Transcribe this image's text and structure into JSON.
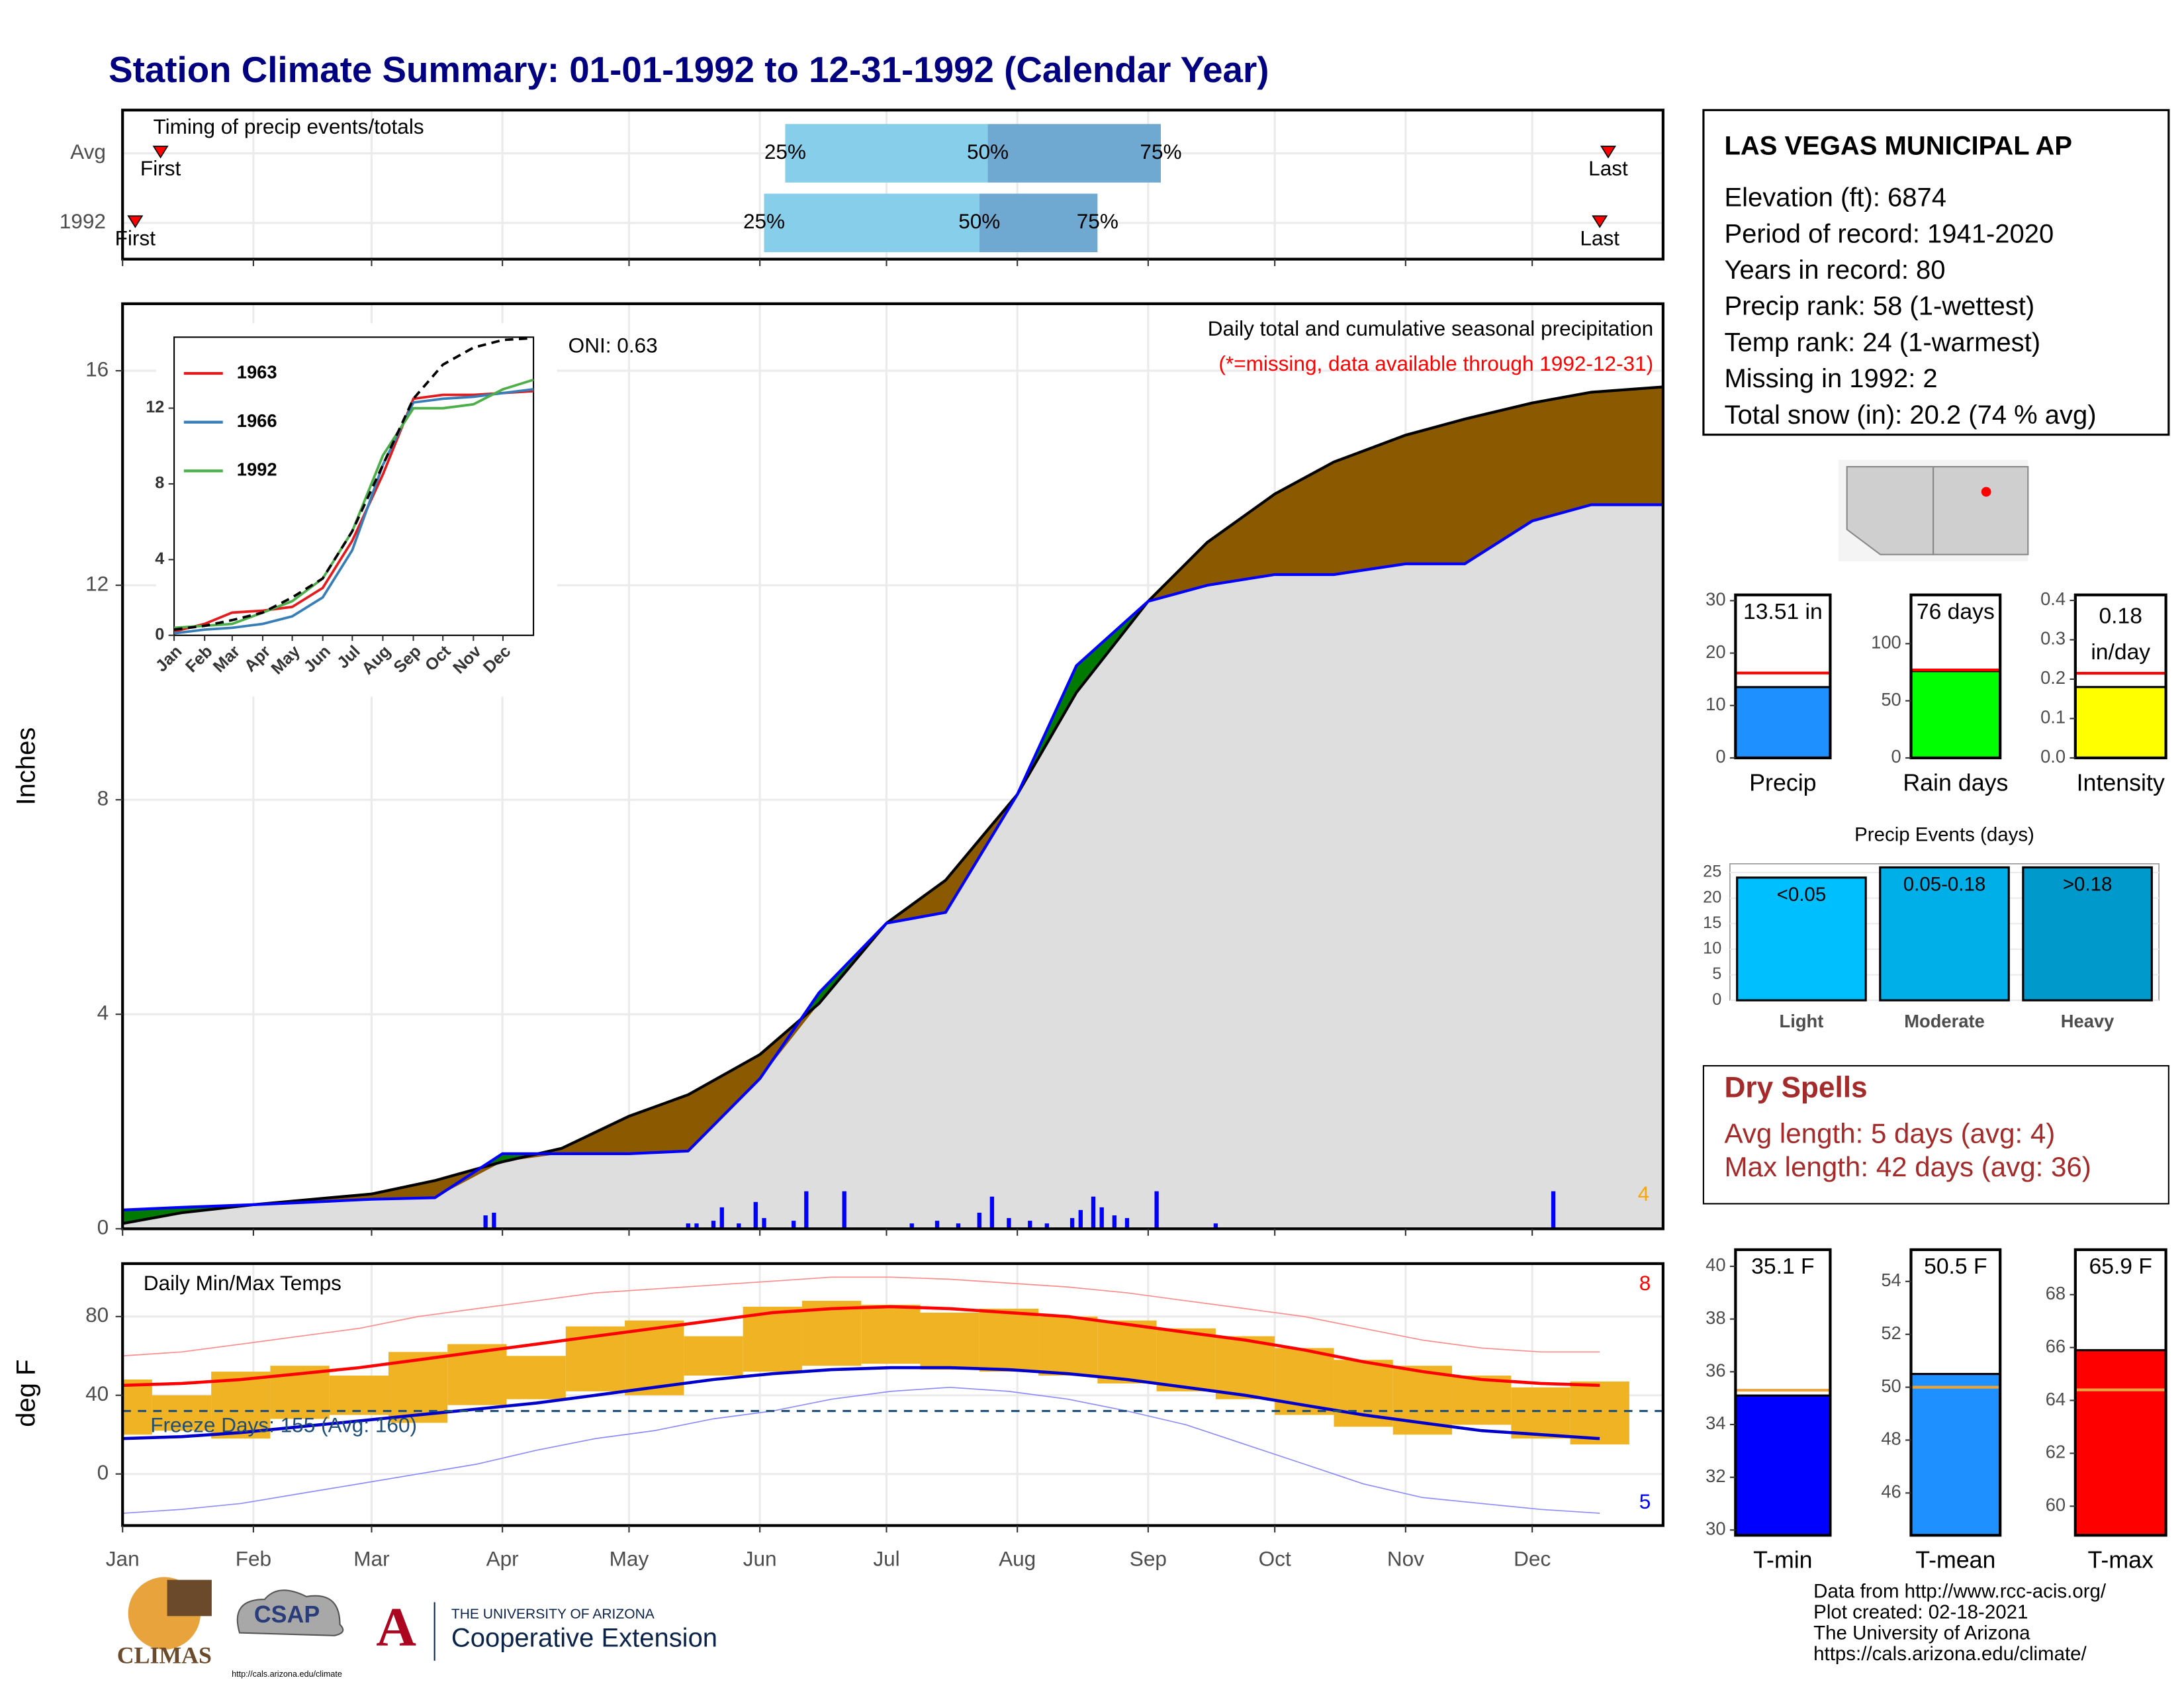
{
  "title": "Station Climate Summary: 01-01-1992 to 12-31-1992 (Calendar Year)",
  "info": {
    "station": "LAS VEGAS MUNICIPAL AP",
    "lines": [
      "Elevation (ft): 6874",
      "Period of record: 1941-2020",
      "Years in record: 80",
      "Precip rank: 58 (1-wettest)",
      "Temp rank: 24 (1-warmest)",
      "Missing in 1992: 2",
      "Total snow (in): 20.2 (74 % avg)"
    ]
  },
  "dry_spells": {
    "title": "Dry Spells",
    "lines": [
      "Avg length: 5 days (avg: 4)",
      "Max length: 42 days (avg: 36)"
    ],
    "color": "#a52a2a"
  },
  "footer": [
    "Data from http://www.rcc-acis.org/",
    "Plot created: 02-18-2021",
    "The University of Arizona",
    "https://cals.arizona.edu/climate/"
  ],
  "logos": {
    "climas": "CLIMAS",
    "csap": "CSAP",
    "csap_url": "http://cals.arizona.edu/climate",
    "university": "THE UNIVERSITY OF ARIZONA",
    "extension": "Cooperative Extension"
  },
  "chart_data": [
    {
      "type": "timing",
      "title": "Timing of precip events/totals",
      "categories": [
        "Avg",
        "1992"
      ],
      "xlim": [
        1,
        366
      ],
      "xticks": [
        1,
        32,
        60,
        91,
        121,
        152,
        182,
        213,
        244,
        274,
        305,
        335
      ],
      "percentile_labels": [
        "25%",
        "50%",
        "75%"
      ],
      "first_label": "First",
      "last_label": "Last",
      "rows": [
        {
          "first": 10,
          "percentiles": [
            158,
            206,
            247
          ],
          "last": 353
        },
        {
          "first": 4,
          "percentiles": [
            153,
            204,
            232
          ],
          "last": 351
        }
      ],
      "colors": [
        "#87ceeb",
        "#6fa8d0"
      ],
      "marker_color": "#ff0000"
    },
    {
      "type": "cumulative",
      "subtitle": "Daily total and cumulative seasonal precipitation",
      "note": "(*=missing, data available through 1992-12-31)",
      "oni": "ONI: 0.63",
      "event_count": 4,
      "ylabel": "Inches",
      "xlim": [
        1,
        366
      ],
      "xticks": [
        1,
        32,
        60,
        91,
        121,
        152,
        182,
        213,
        244,
        274,
        305,
        335
      ],
      "ylim": [
        0,
        17.25
      ],
      "yticks": [
        0,
        4,
        8,
        12,
        16
      ],
      "grid": true,
      "overlap_color": "#dedede",
      "x": [
        1,
        15,
        32,
        46,
        60,
        75,
        91,
        105,
        121,
        135,
        152,
        166,
        182,
        196,
        213,
        227,
        244,
        258,
        274,
        288,
        305,
        319,
        335,
        349,
        366
      ],
      "series": [
        {
          "color": "#0000ff",
          "fill": "#007a00",
          "values": [
            0.35,
            0.4,
            0.45,
            0.5,
            0.55,
            0.58,
            1.4,
            1.4,
            1.4,
            1.45,
            2.8,
            4.4,
            5.7,
            5.9,
            8.1,
            10.5,
            11.7,
            12.0,
            12.2,
            12.2,
            12.4,
            12.4,
            13.2,
            13.5,
            13.5
          ]
        },
        {
          "color": "#000000",
          "fill": "#8b5a00",
          "values": [
            0.1,
            0.3,
            0.45,
            0.55,
            0.65,
            0.9,
            1.25,
            1.5,
            2.1,
            2.5,
            3.25,
            4.2,
            5.7,
            6.5,
            8.1,
            10.0,
            11.7,
            12.8,
            13.7,
            14.3,
            14.8,
            15.1,
            15.4,
            15.6,
            15.7
          ]
        }
      ],
      "daily": {
        "color": "#0000ff",
        "x": [
          87,
          89,
          135,
          137,
          141,
          143,
          147,
          151,
          153,
          160,
          163,
          172,
          188,
          194,
          199,
          204,
          207,
          211,
          216,
          220,
          226,
          228,
          231,
          233,
          236,
          239,
          246,
          260,
          340
        ],
        "values": [
          0.25,
          0.3,
          0.1,
          0.1,
          0.15,
          0.4,
          0.1,
          0.5,
          0.2,
          0.15,
          0.7,
          0.7,
          0.1,
          0.15,
          0.1,
          0.3,
          0.6,
          0.2,
          0.15,
          0.1,
          0.2,
          0.35,
          0.6,
          0.4,
          0.25,
          0.2,
          0.7,
          0.1,
          0.7
        ]
      }
    },
    {
      "type": "line",
      "xlim": [
        1,
        366
      ],
      "ylim": [
        0,
        15.75
      ],
      "yticks": [
        0,
        4,
        8,
        12
      ],
      "xticks": [
        {
          "value": 1,
          "label": "Jan"
        },
        {
          "value": 32,
          "label": "Feb"
        },
        {
          "value": 60,
          "label": "Mar"
        },
        {
          "value": 91,
          "label": "Apr"
        },
        {
          "value": 121,
          "label": "May"
        },
        {
          "value": 152,
          "label": "Jun"
        },
        {
          "value": 182,
          "label": "Jul"
        },
        {
          "value": 213,
          "label": "Aug"
        },
        {
          "value": 244,
          "label": "Sep"
        },
        {
          "value": 274,
          "label": "Oct"
        },
        {
          "value": 305,
          "label": "Nov"
        },
        {
          "value": 335,
          "label": "Dec"
        }
      ],
      "x": [
        1,
        32,
        60,
        91,
        121,
        152,
        182,
        213,
        244,
        274,
        305,
        335,
        366
      ],
      "series": [
        {
          "name": "1963",
          "color": "#e41a1c",
          "values": [
            0.2,
            0.6,
            1.2,
            1.3,
            1.5,
            2.5,
            5.0,
            8.5,
            12.5,
            12.7,
            12.7,
            12.8,
            12.9
          ]
        },
        {
          "name": "1966",
          "color": "#377eb8",
          "values": [
            0.1,
            0.3,
            0.4,
            0.6,
            1.0,
            2.0,
            4.5,
            9.0,
            12.3,
            12.5,
            12.6,
            12.8,
            13.0
          ]
        },
        {
          "name": "1992",
          "color": "#4daf4a",
          "values": [
            0.4,
            0.5,
            0.6,
            1.2,
            1.8,
            3.0,
            5.5,
            9.5,
            12.0,
            12.0,
            12.2,
            13.0,
            13.5
          ]
        },
        {
          "color": "#000000",
          "dash": true,
          "values": [
            0.3,
            0.5,
            0.8,
            1.2,
            2.0,
            3.0,
            5.5,
            9.0,
            12.5,
            14.3,
            15.2,
            15.6,
            15.7
          ]
        }
      ]
    },
    {
      "type": "temperature",
      "title": "Daily Min/Max Temps",
      "annotation": "Freeze Days: 155 (Avg: 160)",
      "ylabel": "deg F",
      "record_high_count": 8,
      "record_low_count": 5,
      "xlim": [
        1,
        366
      ],
      "ylim": [
        -26.2,
        106.9
      ],
      "yticks": [
        0,
        40,
        80
      ],
      "grid": true,
      "xticks": [
        {
          "value": 1,
          "label": "Jan"
        },
        {
          "value": 32,
          "label": "Feb"
        },
        {
          "value": 60,
          "label": "Mar"
        },
        {
          "value": 91,
          "label": "Apr"
        },
        {
          "value": 121,
          "label": "May"
        },
        {
          "value": 152,
          "label": "Jun"
        },
        {
          "value": 182,
          "label": "Jul"
        },
        {
          "value": 213,
          "label": "Aug"
        },
        {
          "value": 244,
          "label": "Sep"
        },
        {
          "value": 274,
          "label": "Oct"
        },
        {
          "value": 305,
          "label": "Nov"
        },
        {
          "value": 335,
          "label": "Dec"
        }
      ],
      "freeze_line": 32,
      "freeze_color": "#1f4e79",
      "x": [
        1,
        15,
        29,
        43,
        57,
        71,
        85,
        99,
        113,
        127,
        141,
        155,
        169,
        183,
        197,
        211,
        225,
        239,
        253,
        267,
        281,
        295,
        309,
        323,
        337,
        351
      ],
      "observed_max": {
        "color": "#f0b323",
        "values": [
          48,
          40,
          52,
          55,
          50,
          62,
          66,
          60,
          75,
          78,
          70,
          85,
          88,
          86,
          82,
          84,
          80,
          78,
          74,
          70,
          64,
          58,
          55,
          50,
          44,
          47
        ]
      },
      "observed_min": {
        "color": "#f0b323",
        "values": [
          20,
          22,
          18,
          28,
          30,
          26,
          35,
          38,
          42,
          40,
          50,
          52,
          55,
          56,
          53,
          52,
          50,
          46,
          42,
          38,
          30,
          24,
          20,
          25,
          18,
          15
        ]
      },
      "normal_max": {
        "color": "#ff0000",
        "values": [
          45,
          46,
          48,
          51,
          54,
          58,
          62,
          66,
          70,
          74,
          78,
          82,
          84,
          85,
          84,
          82,
          80,
          76,
          72,
          68,
          63,
          57,
          52,
          48,
          46,
          45
        ]
      },
      "normal_min": {
        "color": "#0000cd",
        "values": [
          18,
          19,
          21,
          24,
          27,
          30,
          33,
          36,
          40,
          44,
          48,
          51,
          53,
          54,
          54,
          53,
          51,
          48,
          44,
          40,
          35,
          30,
          26,
          22,
          20,
          18
        ]
      },
      "record_max": {
        "color": "#ff8c8c",
        "values": [
          60,
          62,
          66,
          70,
          74,
          80,
          84,
          88,
          92,
          94,
          96,
          98,
          100,
          100,
          99,
          97,
          95,
          92,
          88,
          84,
          80,
          74,
          68,
          64,
          62,
          62
        ]
      },
      "record_min": {
        "color": "#8c8cff",
        "values": [
          -20,
          -18,
          -15,
          -10,
          -5,
          0,
          5,
          12,
          18,
          22,
          28,
          32,
          38,
          42,
          44,
          42,
          38,
          32,
          25,
          15,
          5,
          -5,
          -12,
          -15,
          -18,
          -20
        ]
      }
    },
    {
      "type": "summary_bar",
      "xlabel": "Precip",
      "values": [
        13.51
      ],
      "value_labels": [
        "13.51 in"
      ],
      "average": 16.2,
      "color": "#1e90ff",
      "average_color": "#ff0000",
      "ylim": [
        0,
        31.1
      ],
      "yticks": [
        0,
        10,
        20,
        30
      ]
    },
    {
      "type": "summary_bar",
      "xlabel": "Rain days",
      "values": [
        76
      ],
      "value_labels": [
        "76 days"
      ],
      "average": 77,
      "color": "#00ff00",
      "average_color": "#ff0000",
      "ylim": [
        0,
        142.7
      ],
      "yticks": [
        0,
        50,
        100
      ]
    },
    {
      "type": "summary_bar",
      "xlabel": "Intensity",
      "values": [
        0.18
      ],
      "unit_label": "in/day",
      "average": 0.215,
      "color": "#ffff00",
      "average_color": "#ff0000",
      "ylim": [
        0,
        0.414
      ],
      "yticks": [
        {
          "value": 0,
          "label": "0.0"
        },
        0.1,
        0.2,
        0.3,
        0.4
      ]
    },
    {
      "type": "bar",
      "title": "Precip Events (days)",
      "categories": [
        "Light",
        "Moderate",
        "Heavy"
      ],
      "bin_labels": [
        "<0.05",
        "0.05-0.18",
        ">0.18"
      ],
      "values": [
        24,
        26,
        26
      ],
      "colors": [
        "#00bfff",
        "#00aee8",
        "#0099cc"
      ],
      "ylim": [
        0,
        26.7
      ],
      "yticks": [
        0,
        5,
        10,
        15,
        20,
        25
      ],
      "grid": true
    },
    {
      "type": "summary_bar",
      "xlabel": "T-min",
      "values": [
        35.1
      ],
      "value_labels": [
        "35.1 F"
      ],
      "average": 35.3,
      "color": "#0000ff",
      "average_color": "#e8a33d",
      "ylim": [
        29.8,
        40.63
      ],
      "yticks": [
        30,
        32,
        34,
        36,
        38,
        40
      ]
    },
    {
      "type": "summary_bar",
      "xlabel": "T-mean",
      "values": [
        50.5
      ],
      "value_labels": [
        "50.5 F"
      ],
      "average": 50.0,
      "color": "#1e90ff",
      "average_color": "#e8a33d",
      "ylim": [
        44.4,
        55.2
      ],
      "yticks": [
        46,
        48,
        50,
        52,
        54
      ]
    },
    {
      "type": "summary_bar",
      "xlabel": "T-max",
      "values": [
        65.9
      ],
      "value_labels": [
        "65.9 F"
      ],
      "average": 64.4,
      "color": "#ff0000",
      "average_color": "#e8a33d",
      "ylim": [
        58.9,
        69.7
      ],
      "yticks": [
        60,
        62,
        64,
        66,
        68
      ]
    }
  ]
}
